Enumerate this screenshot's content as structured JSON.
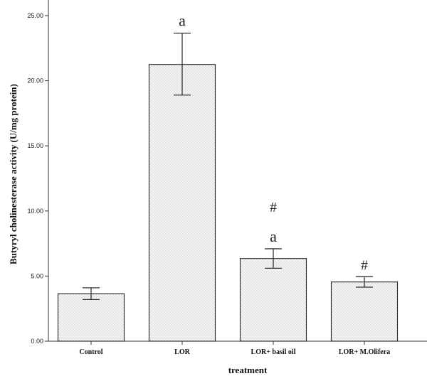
{
  "chart_data": {
    "type": "bar",
    "categories": [
      "Control",
      "LOR",
      "LOR+ basil oil",
      "LOR+ M.Olifera"
    ],
    "values": [
      3.65,
      21.25,
      6.35,
      4.55
    ],
    "errors_low": [
      3.2,
      18.9,
      5.6,
      4.15
    ],
    "errors_high": [
      4.1,
      23.65,
      7.1,
      4.95
    ],
    "significance": [
      [
        "",
        "",
        ""
      ],
      [
        "a",
        "",
        ""
      ],
      [
        "a",
        "#",
        ""
      ],
      [
        "#",
        "",
        ""
      ]
    ],
    "xlabel": "treatment",
    "ylabel": "Butyryl cholinesterase activity (U/mg protein)",
    "ylim": [
      0,
      25
    ],
    "yticks": [
      "0.00",
      "5.00",
      "10.00",
      "15.00",
      "20.00",
      "25.00"
    ],
    "colors": {
      "bar_fill": "#f6f6f6",
      "bar_dot": "#9a9a9a",
      "line": "#333333"
    },
    "grid": false
  }
}
